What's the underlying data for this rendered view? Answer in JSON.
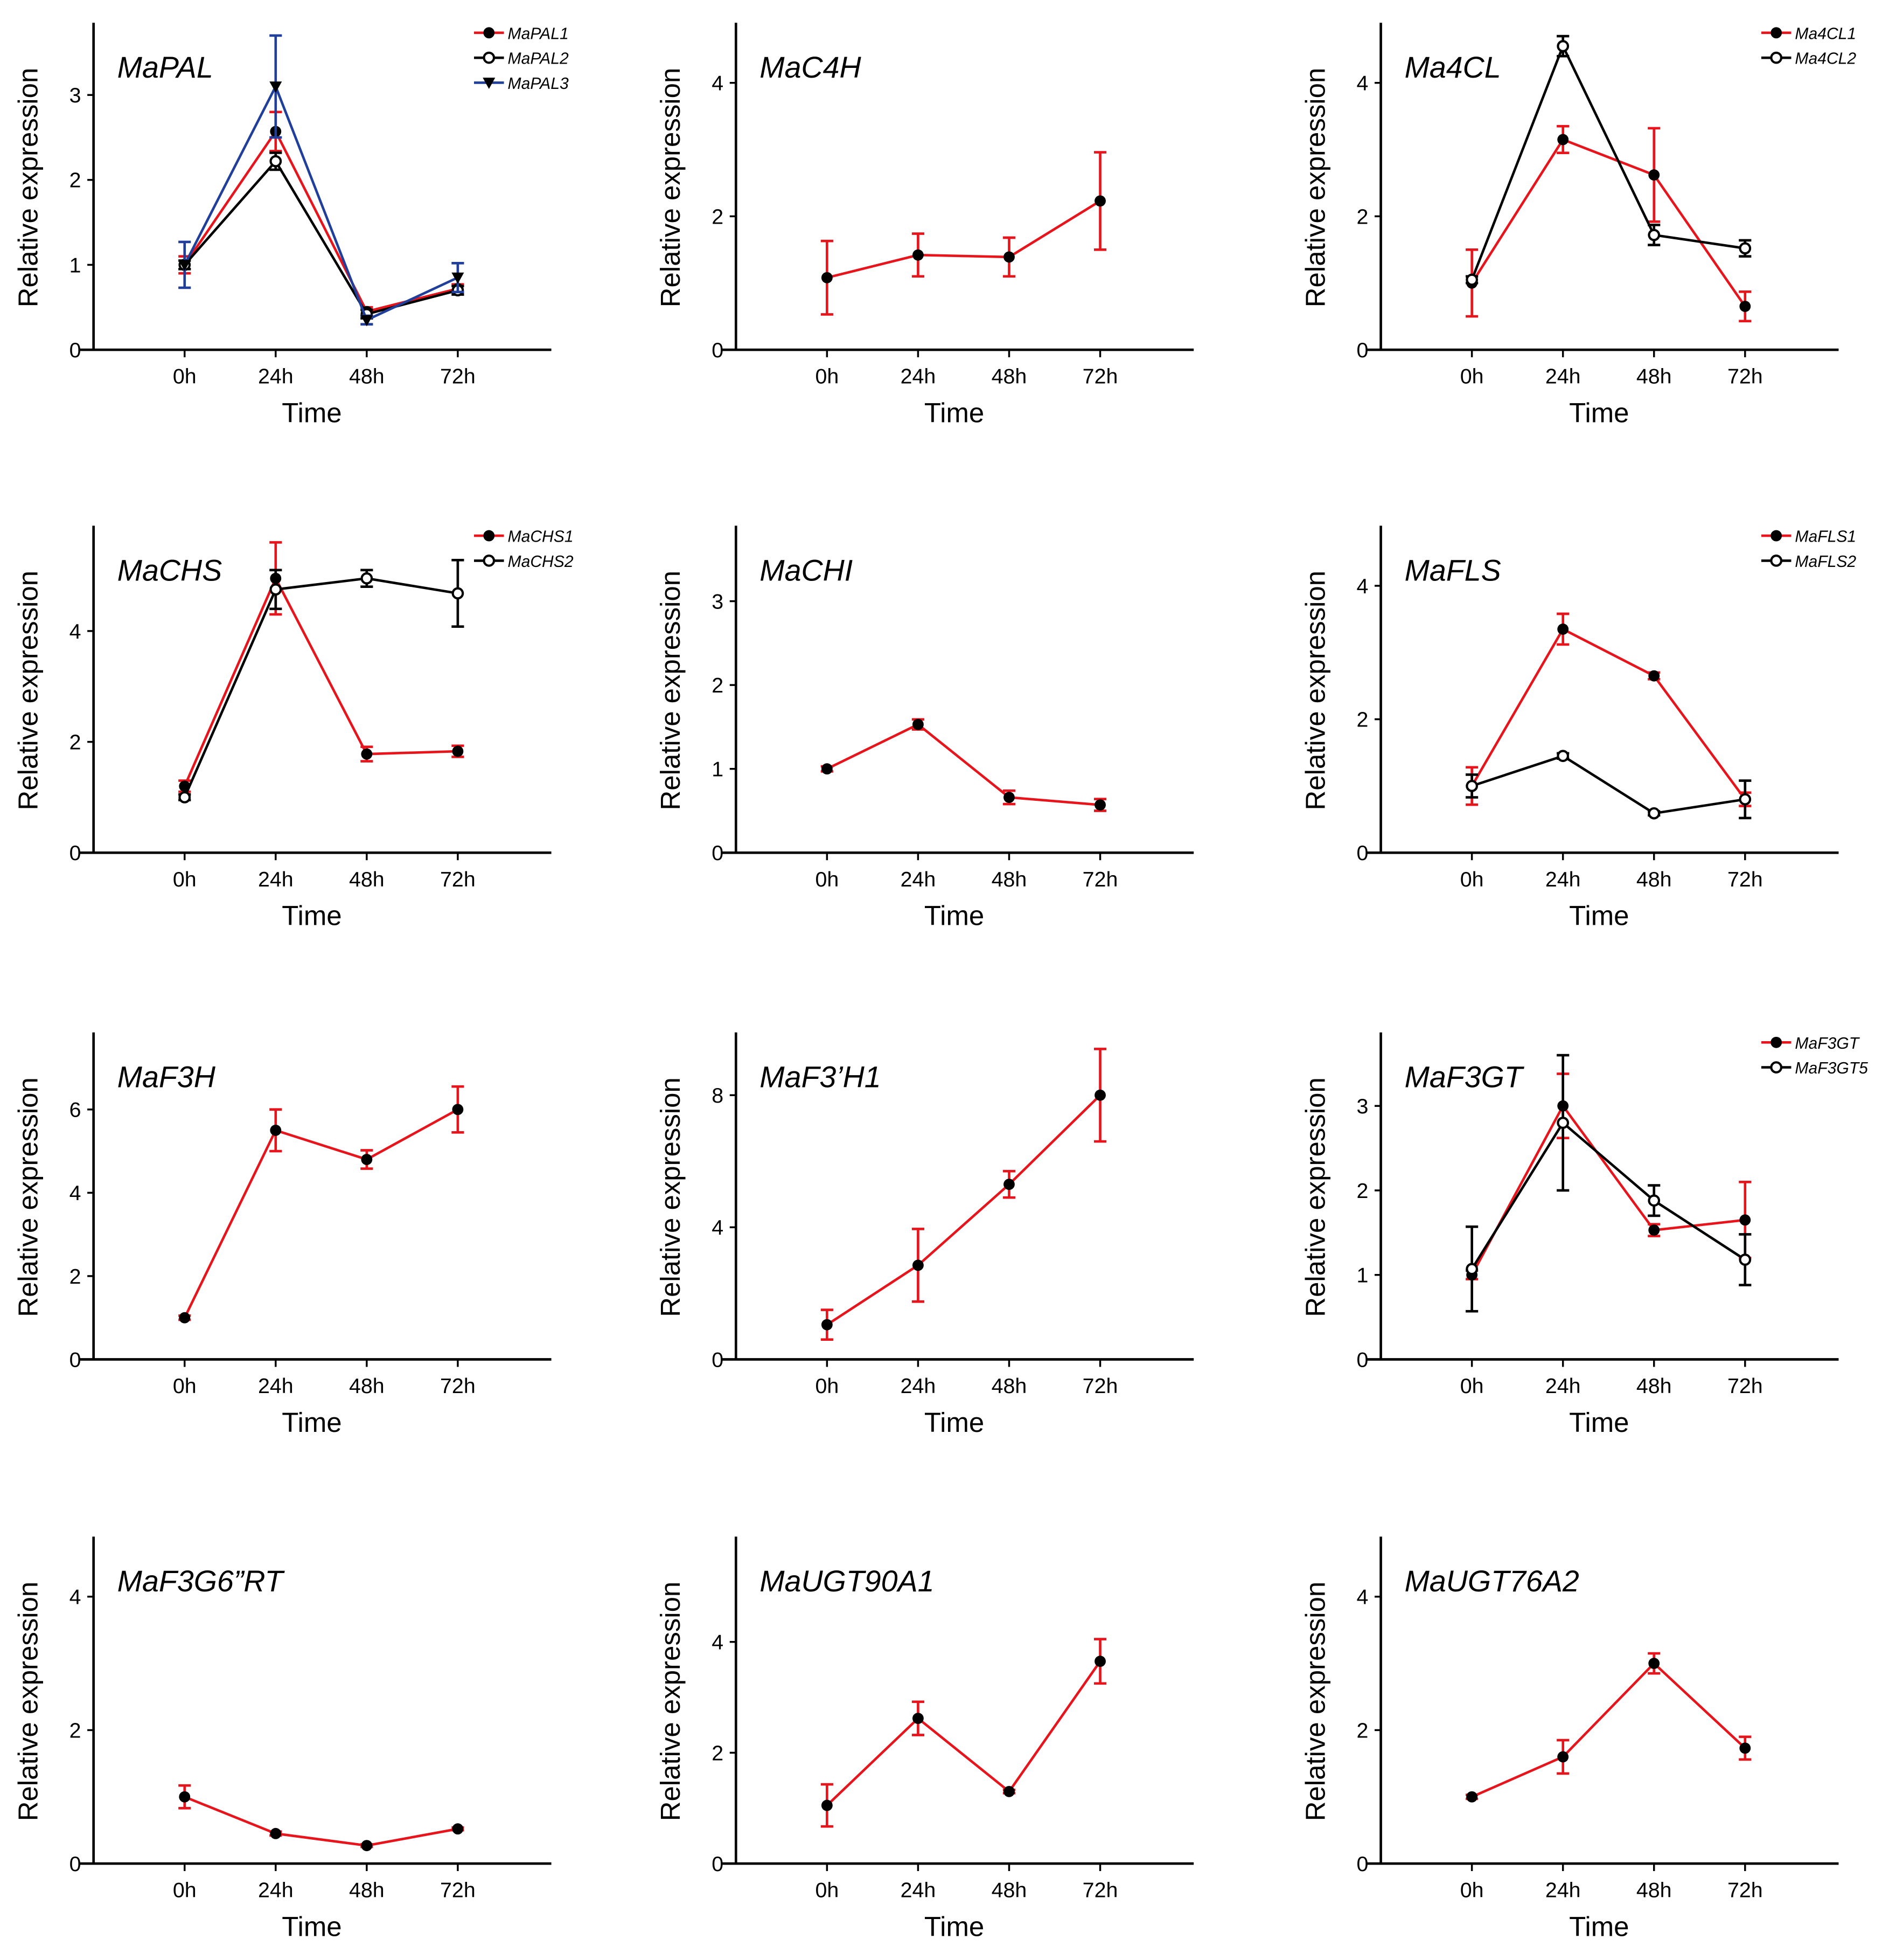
{
  "colors": {
    "red": "#e8141c",
    "black": "#000000",
    "blue": "#1f3f9a"
  },
  "chart_data": [
    {
      "type": "line",
      "title": "MaPAL",
      "xlabel": "Time",
      "ylabel": "Relative expression",
      "categories": [
        "0h",
        "24h",
        "48h",
        "72h"
      ],
      "ylim": [
        0,
        3.85
      ],
      "yticks": [
        0,
        1,
        2,
        3
      ],
      "legend": "top-right",
      "grid": false,
      "series": [
        {
          "name": "MaPAL1",
          "color": "red",
          "marker": "filled-circle",
          "values": [
            1.0,
            2.57,
            0.45,
            0.72
          ],
          "errors": [
            0.1,
            0.23,
            0.05,
            0.05
          ]
        },
        {
          "name": "MaPAL2",
          "color": "black",
          "marker": "open-circle",
          "values": [
            1.0,
            2.22,
            0.42,
            0.7
          ],
          "errors": [
            0.05,
            0.1,
            0.05,
            0.05
          ]
        },
        {
          "name": "MaPAL3",
          "color": "blue",
          "marker": "down-triangle",
          "values": [
            1.0,
            3.1,
            0.35,
            0.85
          ],
          "errors": [
            0.27,
            0.6,
            0.05,
            0.17
          ]
        }
      ]
    },
    {
      "type": "line",
      "title": "MaC4H",
      "xlabel": "Time",
      "ylabel": "Relative expression",
      "categories": [
        "0h",
        "24h",
        "48h",
        "72h"
      ],
      "ylim": [
        0,
        4.9
      ],
      "yticks": [
        0,
        2,
        4
      ],
      "grid": false,
      "series": [
        {
          "color": "red",
          "marker": "filled-circle",
          "values": [
            1.08,
            1.42,
            1.39,
            2.23
          ],
          "errors": [
            0.55,
            0.32,
            0.29,
            0.73
          ]
        }
      ]
    },
    {
      "type": "line",
      "title": "Ma4CL",
      "xlabel": "Time",
      "ylabel": "Relative expression",
      "categories": [
        "0h",
        "24h",
        "48h",
        "72h"
      ],
      "ylim": [
        0,
        4.9
      ],
      "yticks": [
        0,
        2,
        4
      ],
      "legend": "top-right",
      "grid": false,
      "series": [
        {
          "name": "Ma4CL1",
          "color": "red",
          "marker": "filled-circle",
          "values": [
            1.0,
            3.15,
            2.62,
            0.65
          ],
          "errors": [
            0.5,
            0.2,
            0.7,
            0.22
          ]
        },
        {
          "name": "Ma4CL2",
          "color": "black",
          "marker": "open-circle",
          "values": [
            1.05,
            4.55,
            1.72,
            1.52
          ],
          "errors": [
            0.05,
            0.15,
            0.15,
            0.12
          ]
        }
      ]
    },
    {
      "type": "line",
      "title": "MaCHS",
      "xlabel": "Time",
      "ylabel": "Relative expression",
      "categories": [
        "0h",
        "24h",
        "48h",
        "72h"
      ],
      "ylim": [
        0,
        5.9
      ],
      "yticks": [
        0,
        2,
        4
      ],
      "legend": "top-right",
      "grid": false,
      "series": [
        {
          "name": "MaCHS1",
          "color": "red",
          "marker": "filled-circle",
          "values": [
            1.2,
            4.95,
            1.78,
            1.83
          ],
          "errors": [
            0.1,
            0.65,
            0.13,
            0.1
          ]
        },
        {
          "name": "MaCHS2",
          "color": "black",
          "marker": "open-circle",
          "values": [
            1.0,
            4.75,
            4.95,
            4.68
          ],
          "errors": [
            0.05,
            0.35,
            0.15,
            0.6
          ]
        }
      ]
    },
    {
      "type": "line",
      "title": "MaCHI",
      "xlabel": "Time",
      "ylabel": "Relative expression",
      "categories": [
        "0h",
        "24h",
        "48h",
        "72h"
      ],
      "ylim": [
        0,
        3.9
      ],
      "yticks": [
        0,
        1,
        2,
        3
      ],
      "grid": false,
      "series": [
        {
          "color": "red",
          "marker": "filled-circle",
          "values": [
            1.0,
            1.53,
            0.66,
            0.57
          ],
          "errors": [
            0.03,
            0.06,
            0.08,
            0.07
          ]
        }
      ]
    },
    {
      "type": "line",
      "title": "MaFLS",
      "xlabel": "Time",
      "ylabel": "Relative expression",
      "categories": [
        "0h",
        "24h",
        "48h",
        "72h"
      ],
      "ylim": [
        0,
        4.9
      ],
      "yticks": [
        0,
        2,
        4
      ],
      "legend": "top-right",
      "grid": false,
      "series": [
        {
          "name": "MaFLS1",
          "color": "red",
          "marker": "filled-circle",
          "values": [
            1.0,
            3.35,
            2.65,
            0.8
          ],
          "errors": [
            0.28,
            0.23,
            0.05,
            0.1
          ]
        },
        {
          "name": "MaFLS2",
          "color": "black",
          "marker": "open-circle",
          "values": [
            1.0,
            1.45,
            0.59,
            0.8
          ],
          "errors": [
            0.17,
            0.04,
            0.03,
            0.28
          ]
        }
      ]
    },
    {
      "type": "line",
      "title": "MaF3H",
      "xlabel": "Time",
      "ylabel": "Relative expression",
      "categories": [
        "0h",
        "24h",
        "48h",
        "72h"
      ],
      "ylim": [
        0,
        7.85
      ],
      "yticks": [
        0,
        2,
        4,
        6
      ],
      "grid": false,
      "series": [
        {
          "color": "red",
          "marker": "filled-circle",
          "values": [
            1.0,
            5.5,
            4.8,
            6.0
          ],
          "errors": [
            0.05,
            0.5,
            0.22,
            0.55
          ]
        }
      ]
    },
    {
      "type": "line",
      "title": "MaF3’H1",
      "xlabel": "Time",
      "ylabel": "Relative expression",
      "categories": [
        "0h",
        "24h",
        "48h",
        "72h"
      ],
      "ylim": [
        0,
        9.9
      ],
      "yticks": [
        0,
        4,
        8
      ],
      "grid": false,
      "series": [
        {
          "color": "red",
          "marker": "filled-circle",
          "values": [
            1.05,
            2.85,
            5.3,
            8.0
          ],
          "errors": [
            0.45,
            1.1,
            0.4,
            1.4
          ]
        }
      ]
    },
    {
      "type": "line",
      "title": "MaF3GT",
      "xlabel": "Time",
      "ylabel": "Relative expression",
      "categories": [
        "0h",
        "24h",
        "48h",
        "72h"
      ],
      "ylim": [
        0,
        3.87
      ],
      "yticks": [
        0,
        1,
        2,
        3
      ],
      "legend": "top-right",
      "grid": false,
      "series": [
        {
          "name": "MaF3GT",
          "color": "red",
          "marker": "filled-circle",
          "values": [
            1.0,
            3.0,
            1.53,
            1.65
          ],
          "errors": [
            0.05,
            0.38,
            0.07,
            0.45
          ]
        },
        {
          "name": "MaF3GT5",
          "color": "black",
          "marker": "open-circle",
          "values": [
            1.07,
            2.8,
            1.88,
            1.18
          ],
          "errors": [
            0.5,
            0.8,
            0.18,
            0.3
          ]
        }
      ]
    },
    {
      "type": "line",
      "title": "MaF3G6”RT",
      "xlabel": "Time",
      "ylabel": "Relative expression",
      "categories": [
        "0h",
        "24h",
        "48h",
        "72h"
      ],
      "ylim": [
        0,
        4.9
      ],
      "yticks": [
        0,
        2,
        4
      ],
      "grid": false,
      "series": [
        {
          "color": "red",
          "marker": "filled-circle",
          "values": [
            1.0,
            0.45,
            0.27,
            0.52
          ],
          "errors": [
            0.17,
            0.03,
            0.02,
            0.02
          ]
        }
      ]
    },
    {
      "type": "line",
      "title": "MaUGT90A1",
      "xlabel": "Time",
      "ylabel": "Relative expression",
      "categories": [
        "0h",
        "24h",
        "48h",
        "72h"
      ],
      "ylim": [
        0,
        5.9
      ],
      "yticks": [
        0,
        2,
        4
      ],
      "grid": false,
      "series": [
        {
          "color": "red",
          "marker": "filled-circle",
          "values": [
            1.05,
            2.62,
            1.3,
            3.65
          ],
          "errors": [
            0.38,
            0.3,
            0.03,
            0.4
          ]
        }
      ]
    },
    {
      "type": "line",
      "title": "MaUGT76A2",
      "xlabel": "Time",
      "ylabel": "Relative expression",
      "categories": [
        "0h",
        "24h",
        "48h",
        "72h"
      ],
      "ylim": [
        0,
        4.9
      ],
      "yticks": [
        0,
        2,
        4
      ],
      "grid": false,
      "series": [
        {
          "color": "red",
          "marker": "filled-circle",
          "values": [
            1.0,
            1.6,
            3.0,
            1.73
          ],
          "errors": [
            0.03,
            0.25,
            0.15,
            0.17
          ]
        }
      ]
    }
  ]
}
